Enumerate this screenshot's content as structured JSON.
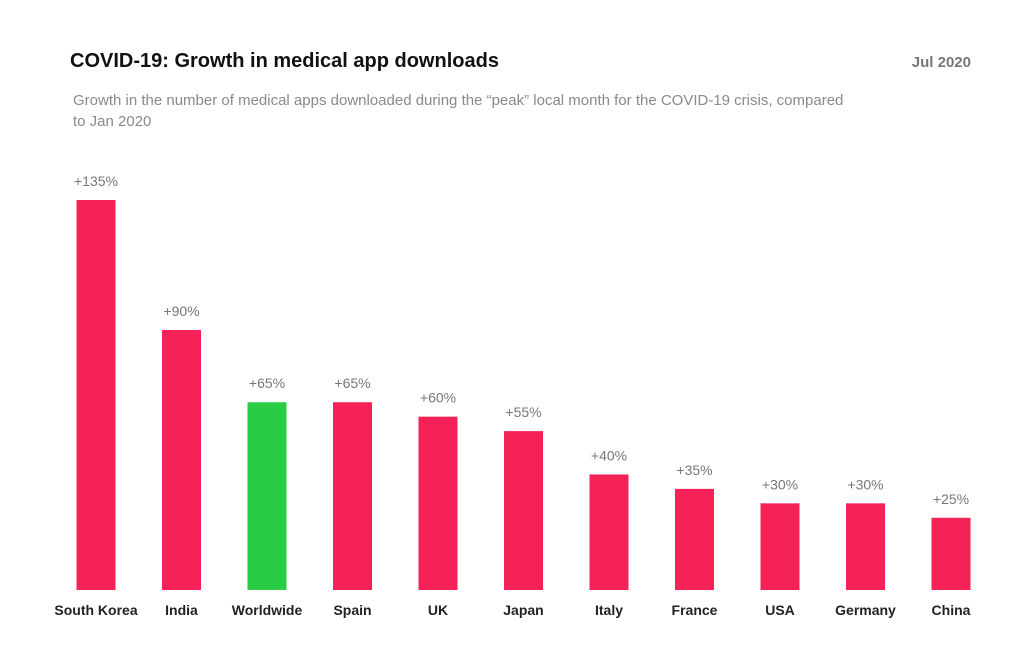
{
  "header": {
    "title": "COVID-19: Growth in medical app downloads",
    "date": "Jul 2020",
    "subtitle": "Growth in the number of medical apps downloaded during the “peak” local month for the COVID-19 crisis, compared to Jan 2020"
  },
  "chart_data": {
    "type": "bar",
    "title": "COVID-19: Growth in medical app downloads",
    "subtitle": "Growth in the number of medical apps downloaded during the “peak” local month for the COVID-19 crisis, compared to Jan 2020",
    "categories": [
      "South Korea",
      "India",
      "Worldwide",
      "Spain",
      "UK",
      "Japan",
      "Italy",
      "France",
      "USA",
      "Germany",
      "China"
    ],
    "values": [
      135,
      90,
      65,
      65,
      60,
      55,
      40,
      35,
      30,
      30,
      25
    ],
    "data_labels": [
      "+135%",
      "+90%",
      "+65%",
      "+65%",
      "+60%",
      "+55%",
      "+40%",
      "+35%",
      "+30%",
      "+30%",
      "+25%"
    ],
    "highlight_category": "Worldwide",
    "colors": {
      "default": "#F42257",
      "highlight": "#2ACB45"
    },
    "ylim": [
      0,
      135
    ],
    "grid": false,
    "xlabel": "",
    "ylabel": ""
  }
}
